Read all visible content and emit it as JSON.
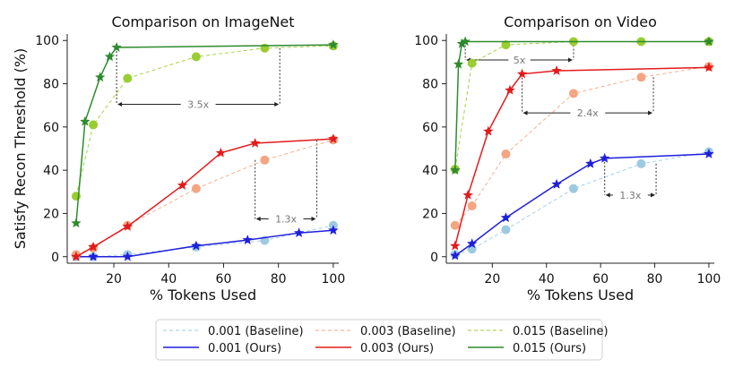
{
  "chart_data": [
    {
      "type": "line",
      "title": "Comparison on ImageNet",
      "xlabel": "% Tokens Used",
      "ylabel": "Satisfy Recon Threshold (%)",
      "xlim": [
        3,
        102
      ],
      "ylim": [
        -3,
        103
      ],
      "xticks": [
        20,
        40,
        60,
        80,
        100
      ],
      "yticks": [
        0,
        20,
        40,
        60,
        80,
        100
      ],
      "grid": false,
      "series": [
        {
          "name": "0.001 (Baseline)",
          "color": "#9ecae1",
          "style": "dashed",
          "marker": "circle",
          "x": [
            6.25,
            12.5,
            25,
            50,
            75,
            100
          ],
          "y": [
            0,
            0,
            1,
            4.5,
            7.5,
            14.5
          ]
        },
        {
          "name": "0.001 (Ours)",
          "color": "#1f1fdb",
          "style": "solid",
          "marker": "star",
          "x": [
            6.25,
            12.5,
            25,
            50,
            68.75,
            87.5,
            100
          ],
          "y": [
            0,
            0,
            0,
            5,
            7.7,
            11,
            12.2
          ]
        },
        {
          "name": "0.003 (Baseline)",
          "color": "#f4a582",
          "style": "dashed",
          "marker": "circle",
          "x": [
            6.25,
            12.5,
            25,
            50,
            75,
            100
          ],
          "y": [
            1,
            4,
            14.5,
            31.5,
            44.7,
            54
          ]
        },
        {
          "name": "0.003 (Ours)",
          "color": "#e31a1c",
          "style": "solid",
          "marker": "star",
          "x": [
            6.25,
            12.5,
            25,
            45,
            59,
            71.5,
            100
          ],
          "y": [
            0,
            4.5,
            14,
            33,
            48,
            52.5,
            54.5
          ]
        },
        {
          "name": "0.015 (Baseline)",
          "color": "#9acd32",
          "style": "dashed",
          "marker": "circle",
          "x": [
            6.25,
            12.5,
            25,
            50,
            75,
            100
          ],
          "y": [
            28,
            61,
            82.5,
            92.5,
            96.5,
            97.5
          ]
        },
        {
          "name": "0.015 (Ours)",
          "color": "#2e8b2e",
          "style": "solid",
          "marker": "star",
          "x": [
            6.25,
            9.5,
            15,
            18.5,
            21,
            100
          ],
          "y": [
            15.5,
            62.5,
            83,
            92.5,
            96.8,
            98
          ]
        }
      ],
      "annotations": [
        {
          "text": "3.5x",
          "x1": 21,
          "x2": 80.5,
          "y": 70.5,
          "drop_left_to": 96.8,
          "drop_right_to": 96.5
        },
        {
          "text": "1.3x",
          "x1": 71.5,
          "x2": 94,
          "y": 17.5,
          "drop_left_to": 44.7,
          "drop_right_to": 54
        }
      ]
    },
    {
      "type": "line",
      "title": "Comparison on Video",
      "xlabel": "% Tokens Used",
      "ylabel": "",
      "xlim": [
        3,
        102
      ],
      "ylim": [
        -3,
        103
      ],
      "xticks": [
        20,
        40,
        60,
        80,
        100
      ],
      "yticks": [
        0,
        20,
        40,
        60,
        80,
        100
      ],
      "grid": false,
      "series": [
        {
          "name": "0.001 (Baseline)",
          "color": "#9ecae1",
          "style": "dashed",
          "marker": "circle",
          "x": [
            6.25,
            12.5,
            25,
            50,
            75,
            100
          ],
          "y": [
            1,
            3.5,
            12.5,
            31.5,
            43,
            48.5
          ]
        },
        {
          "name": "0.001 (Ours)",
          "color": "#1f1fdb",
          "style": "solid",
          "marker": "star",
          "x": [
            6.25,
            12.5,
            25,
            43.75,
            56.25,
            61.5,
            100
          ],
          "y": [
            0.5,
            6,
            18,
            33.5,
            43,
            45.5,
            47.5
          ]
        },
        {
          "name": "0.003 (Baseline)",
          "color": "#f4a582",
          "style": "dashed",
          "marker": "circle",
          "x": [
            6.25,
            12.5,
            25,
            50,
            75,
            100
          ],
          "y": [
            14.5,
            23.5,
            47.5,
            75.5,
            83,
            88
          ]
        },
        {
          "name": "0.003 (Ours)",
          "color": "#e31a1c",
          "style": "solid",
          "marker": "star",
          "x": [
            6.25,
            11,
            18.5,
            26.5,
            31,
            43.75,
            100
          ],
          "y": [
            5,
            28.5,
            58,
            77,
            84.5,
            86,
            87.5
          ]
        },
        {
          "name": "0.015 (Baseline)",
          "color": "#9acd32",
          "style": "dashed",
          "marker": "circle",
          "x": [
            6.25,
            12.5,
            25,
            50,
            75,
            100
          ],
          "y": [
            40.5,
            89.5,
            98,
            99.5,
            99.5,
            99.5
          ]
        },
        {
          "name": "0.015 (Ours)",
          "color": "#2e8b2e",
          "style": "solid",
          "marker": "star",
          "x": [
            6.25,
            7.5,
            8.75,
            10,
            100
          ],
          "y": [
            40,
            89,
            98.5,
            99.5,
            99.5
          ]
        }
      ],
      "annotations": [
        {
          "text": "5x",
          "x1": 10,
          "x2": 50,
          "y": 91,
          "drop_left_to": 99.5,
          "drop_right_to": 99.5
        },
        {
          "text": "2.4x",
          "x1": 31,
          "x2": 79.5,
          "y": 66.5,
          "drop_left_to": 84.5,
          "drop_right_to": 83
        },
        {
          "text": "1.3x",
          "x1": 61.5,
          "x2": 80.5,
          "y": 28.5,
          "drop_left_to": 45.5,
          "drop_right_to": 43
        }
      ]
    }
  ],
  "legend": {
    "placement": "bottom-center",
    "entries": [
      {
        "label": "0.001 (Baseline)",
        "color": "#9ecae1",
        "style": "dashed"
      },
      {
        "label": "0.003 (Baseline)",
        "color": "#f4a582",
        "style": "dashed"
      },
      {
        "label": "0.015 (Baseline)",
        "color": "#9acd32",
        "style": "dashed"
      },
      {
        "label": "0.001 (Ours)",
        "color": "#1f1fdb",
        "style": "solid"
      },
      {
        "label": "0.003 (Ours)",
        "color": "#e31a1c",
        "style": "solid"
      },
      {
        "label": "0.015 (Ours)",
        "color": "#2e8b2e",
        "style": "solid"
      }
    ]
  }
}
